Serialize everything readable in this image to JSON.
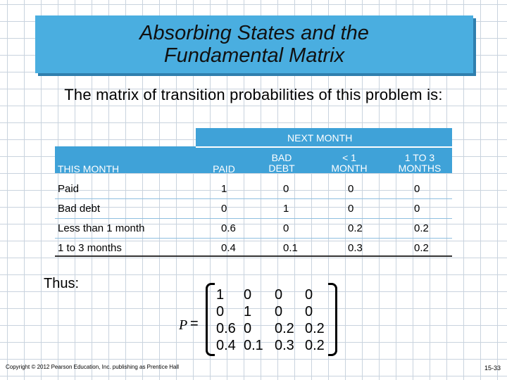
{
  "title": {
    "line1": "Absorbing States and the",
    "line2": "Fundamental Matrix"
  },
  "subtitle": "The matrix of transition probabilities of this problem is:",
  "table": {
    "group_header": "NEXT MONTH",
    "row_header": "THIS MONTH",
    "columns": [
      {
        "line1": "PAID",
        "line2": ""
      },
      {
        "line1": "BAD",
        "line2": "DEBT"
      },
      {
        "line1": "< 1",
        "line2": "MONTH"
      },
      {
        "line1": "1 TO 3",
        "line2": "MONTHS"
      }
    ],
    "rows": [
      {
        "label": "Paid",
        "values": [
          "1",
          "0",
          "0",
          "0"
        ]
      },
      {
        "label": "Bad debt",
        "values": [
          "0",
          "1",
          "0",
          "0"
        ]
      },
      {
        "label": "Less than 1 month",
        "values": [
          "0.6",
          "0",
          "0.2",
          "0.2"
        ]
      },
      {
        "label": "1 to 3 months",
        "values": [
          "0.4",
          "0.1",
          "0.3",
          "0.2"
        ]
      }
    ]
  },
  "thus": "Thus:",
  "matrix": {
    "symbol": "P",
    "equals": "=",
    "rows": [
      [
        "1",
        "0",
        "0",
        "0"
      ],
      [
        "0",
        "1",
        "0",
        "0"
      ],
      [
        "0.6",
        "0",
        "0.2",
        "0.2"
      ],
      [
        "0.4",
        "0.1",
        "0.3",
        "0.2"
      ]
    ]
  },
  "footer": {
    "copyright": "Copyright © 2012 Pearson Education, Inc. publishing as Prentice Hall",
    "slide_number": "15-33"
  },
  "colors": {
    "title_bg": "#4aaee0",
    "header_bg": "#3fa2d8"
  }
}
